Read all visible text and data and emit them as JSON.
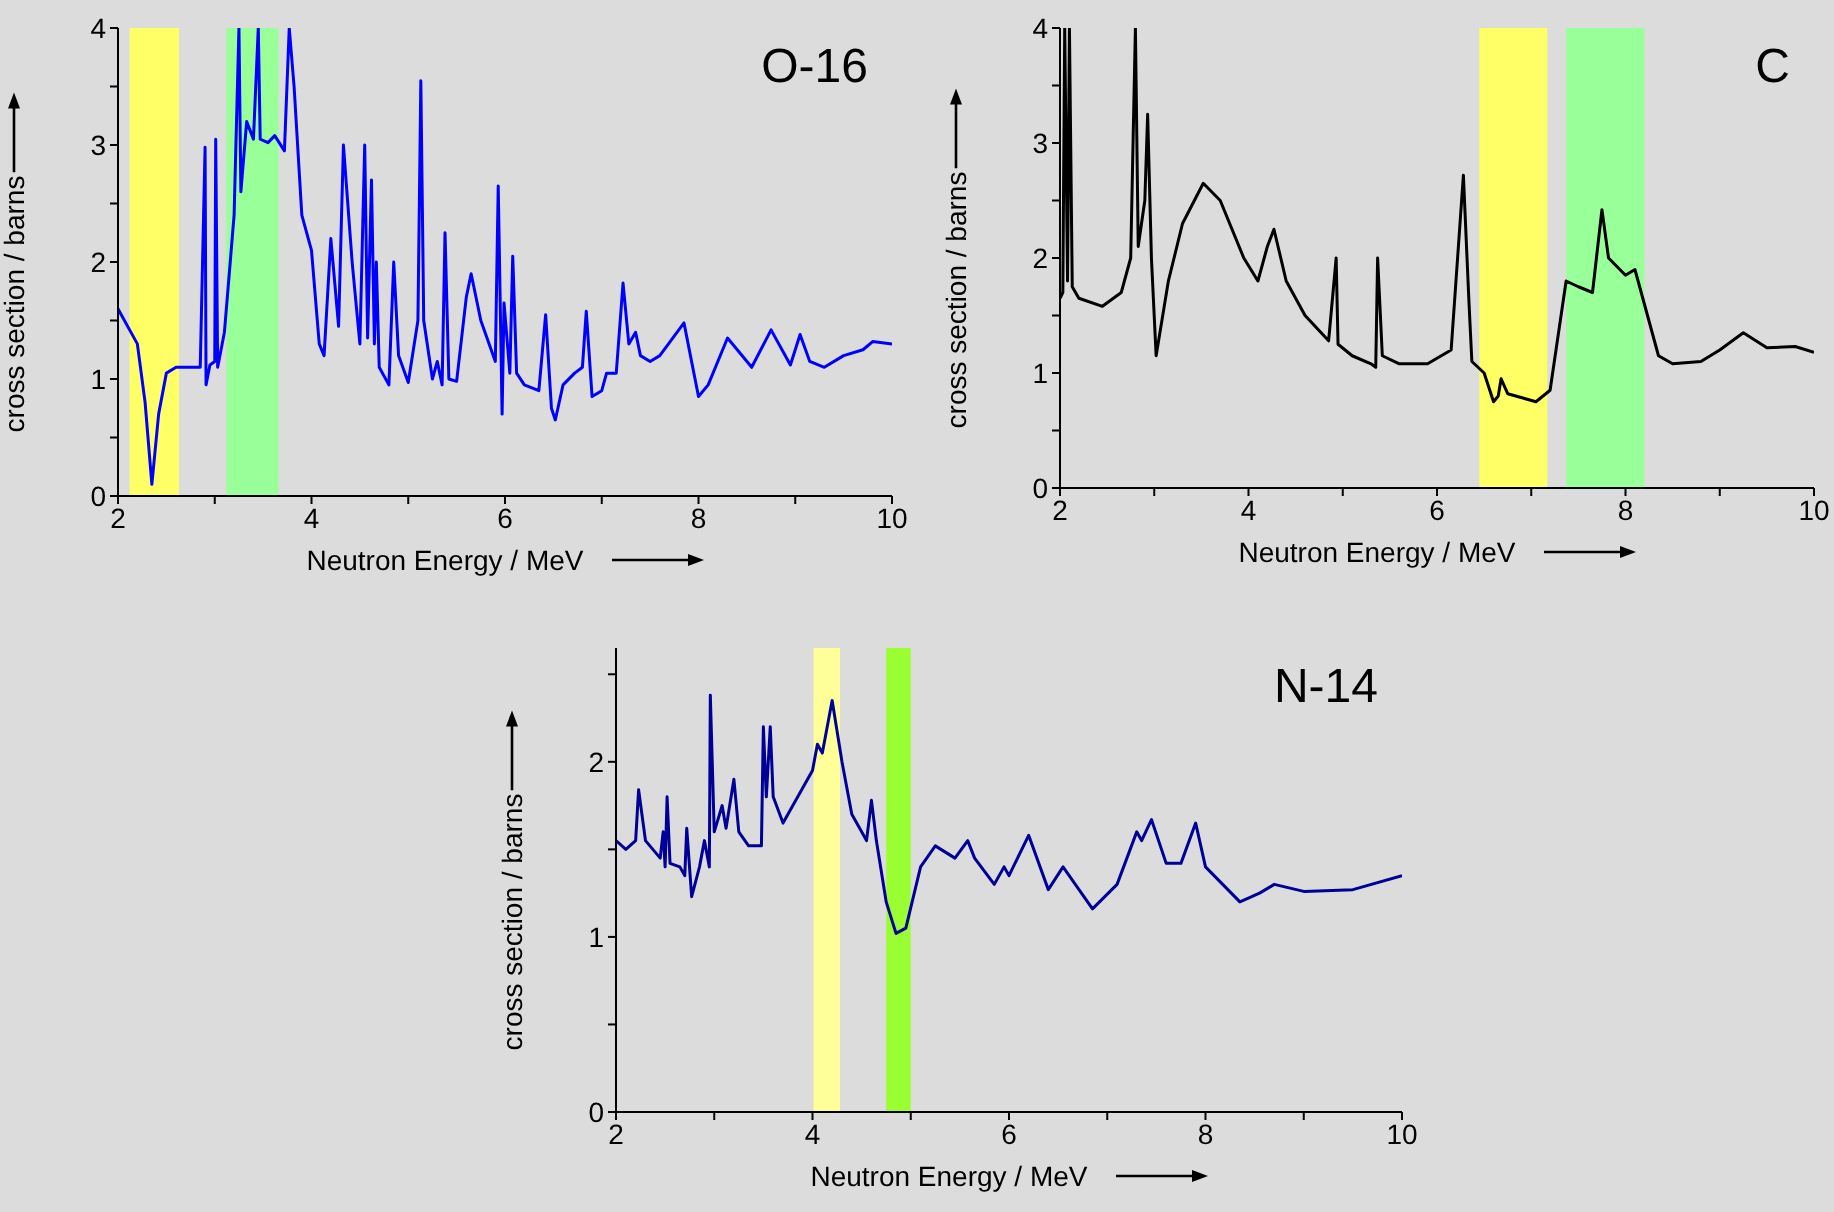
{
  "chart_data": [
    {
      "type": "line",
      "title": "O-16",
      "xlabel": "Neutron Energy / MeV",
      "ylabel": "cross section / barns",
      "marker": "none",
      "x": [
        2.0,
        2.1,
        2.2,
        2.28,
        2.35,
        2.42,
        2.5,
        2.6,
        2.85,
        2.9,
        2.91,
        2.95,
        3.0,
        3.01,
        3.03,
        3.1,
        3.2,
        3.25,
        3.27,
        3.33,
        3.4,
        3.45,
        3.47,
        3.55,
        3.62,
        3.72,
        3.77,
        3.82,
        3.9,
        4.0,
        4.08,
        4.13,
        4.2,
        4.28,
        4.33,
        4.42,
        4.5,
        4.55,
        4.58,
        4.62,
        4.65,
        4.67,
        4.7,
        4.8,
        4.85,
        4.9,
        5.0,
        5.1,
        5.13,
        5.16,
        5.25,
        5.3,
        5.35,
        5.38,
        5.42,
        5.5,
        5.6,
        5.65,
        5.75,
        5.9,
        5.93,
        5.97,
        5.99,
        6.05,
        6.08,
        6.12,
        6.2,
        6.35,
        6.42,
        6.48,
        6.52,
        6.6,
        6.72,
        6.8,
        6.84,
        6.9,
        7.0,
        7.05,
        7.15,
        7.22,
        7.28,
        7.35,
        7.4,
        7.5,
        7.6,
        7.85,
        8.0,
        8.1,
        8.3,
        8.55,
        8.75,
        8.95,
        9.05,
        9.15,
        9.3,
        9.5,
        9.7,
        9.8,
        10.0
      ],
      "series": [
        {
          "color": "#0000ff",
          "values": [
            1.6,
            1.45,
            1.3,
            0.8,
            0.1,
            0.7,
            1.05,
            1.1,
            1.1,
            2.98,
            0.95,
            1.12,
            1.15,
            3.05,
            1.1,
            1.4,
            2.4,
            4.0,
            2.6,
            3.2,
            3.05,
            4.0,
            3.05,
            3.02,
            3.08,
            2.95,
            4.0,
            3.5,
            2.4,
            2.1,
            1.3,
            1.2,
            2.2,
            1.45,
            3.0,
            2.0,
            1.3,
            3.0,
            1.35,
            2.7,
            1.3,
            2.0,
            1.1,
            0.95,
            2.0,
            1.2,
            0.97,
            1.5,
            3.55,
            1.5,
            1.0,
            1.15,
            0.95,
            2.25,
            1.0,
            0.98,
            1.7,
            1.9,
            1.5,
            1.15,
            2.65,
            0.7,
            1.65,
            1.05,
            2.05,
            1.05,
            0.95,
            0.9,
            1.55,
            0.75,
            0.65,
            0.95,
            1.05,
            1.1,
            1.58,
            0.85,
            0.9,
            1.05,
            1.05,
            1.82,
            1.3,
            1.4,
            1.2,
            1.15,
            1.2,
            1.48,
            0.85,
            0.95,
            1.35,
            1.1,
            1.42,
            1.12,
            1.38,
            1.15,
            1.1,
            1.2,
            1.25,
            1.32,
            1.3
          ]
        }
      ],
      "xlim": [
        2,
        10
      ],
      "ylim": [
        0,
        4
      ],
      "xticks": [
        2,
        {
          "value": 3,
          "label": null
        },
        4,
        {
          "value": 5,
          "label": null
        },
        6,
        {
          "value": 7,
          "label": null
        },
        8,
        {
          "value": 9,
          "label": null
        },
        10
      ],
      "yticks": [
        0,
        {
          "value": 0.5,
          "label": null
        },
        1,
        {
          "value": 1.5,
          "label": null
        },
        2,
        {
          "value": 2.5,
          "label": null
        },
        3,
        {
          "value": 3.5,
          "label": null
        },
        4
      ],
      "bands": [
        {
          "axis": "x",
          "from": 2.12,
          "to": 2.63,
          "color": "#ffff66"
        },
        {
          "axis": "x",
          "from": 3.12,
          "to": 3.66,
          "color": "#99ff99"
        }
      ]
    },
    {
      "type": "line",
      "title": "C",
      "xlabel": "Neutron Energy / MeV",
      "ylabel": "cross section / barns",
      "marker": "none",
      "x": [
        2.0,
        2.03,
        2.05,
        2.08,
        2.1,
        2.13,
        2.2,
        2.45,
        2.65,
        2.75,
        2.8,
        2.83,
        2.9,
        2.93,
        2.97,
        3.02,
        3.15,
        3.3,
        3.52,
        3.7,
        3.95,
        4.1,
        4.2,
        4.27,
        4.4,
        4.6,
        4.85,
        4.93,
        4.95,
        5.1,
        5.3,
        5.35,
        5.37,
        5.42,
        5.6,
        5.9,
        6.15,
        6.28,
        6.34,
        6.37,
        6.5,
        6.6,
        6.65,
        6.68,
        6.75,
        7.05,
        7.2,
        7.37,
        7.5,
        7.65,
        7.75,
        7.82,
        8.0,
        8.1,
        8.2,
        8.35,
        8.5,
        8.8,
        9.0,
        9.25,
        9.5,
        9.8,
        10.0
      ],
      "series": [
        {
          "color": "#000000",
          "values": [
            1.65,
            1.7,
            4.0,
            1.8,
            4.0,
            1.75,
            1.65,
            1.58,
            1.7,
            2.0,
            4.0,
            2.1,
            2.5,
            3.25,
            2.0,
            1.15,
            1.8,
            2.3,
            2.65,
            2.5,
            2.0,
            1.8,
            2.1,
            2.25,
            1.8,
            1.5,
            1.28,
            2.0,
            1.25,
            1.15,
            1.08,
            1.05,
            2.0,
            1.15,
            1.08,
            1.08,
            1.2,
            2.72,
            1.6,
            1.1,
            1.0,
            0.75,
            0.8,
            0.95,
            0.82,
            0.75,
            0.85,
            1.8,
            1.75,
            1.7,
            2.42,
            2.0,
            1.85,
            1.9,
            1.6,
            1.15,
            1.08,
            1.1,
            1.2,
            1.35,
            1.22,
            1.23,
            1.18
          ]
        }
      ],
      "xlim": [
        2,
        10
      ],
      "ylim": [
        0,
        4
      ],
      "xticks": [
        2,
        {
          "value": 3,
          "label": null
        },
        4,
        {
          "value": 5,
          "label": null
        },
        6,
        {
          "value": 7,
          "label": null
        },
        8,
        {
          "value": 9,
          "label": null
        },
        10
      ],
      "yticks": [
        0,
        {
          "value": 0.5,
          "label": null
        },
        1,
        {
          "value": 1.5,
          "label": null
        },
        2,
        {
          "value": 2.5,
          "label": null
        },
        3,
        {
          "value": 3.5,
          "label": null
        },
        4
      ],
      "bands": [
        {
          "axis": "x",
          "from": 6.45,
          "to": 7.17,
          "color": "#ffff66"
        },
        {
          "axis": "x",
          "from": 7.37,
          "to": 8.2,
          "color": "#99ff99"
        }
      ]
    },
    {
      "type": "line",
      "title": "N-14",
      "xlabel": "Neutron Energy / MeV",
      "ylabel": "cross section / barns",
      "marker": "none",
      "x": [
        2.0,
        2.1,
        2.2,
        2.23,
        2.3,
        2.45,
        2.48,
        2.5,
        2.52,
        2.55,
        2.65,
        2.7,
        2.72,
        2.77,
        2.85,
        2.9,
        2.95,
        2.96,
        3.0,
        3.08,
        3.12,
        3.2,
        3.25,
        3.35,
        3.48,
        3.5,
        3.53,
        3.57,
        3.6,
        3.7,
        3.85,
        4.0,
        4.05,
        4.1,
        4.2,
        4.3,
        4.4,
        4.5,
        4.55,
        4.6,
        4.65,
        4.75,
        4.85,
        4.95,
        5.1,
        5.25,
        5.45,
        5.58,
        5.65,
        5.85,
        5.95,
        6.0,
        6.2,
        6.4,
        6.55,
        6.85,
        7.1,
        7.3,
        7.35,
        7.45,
        7.6,
        7.75,
        7.9,
        8.0,
        8.35,
        8.55,
        8.7,
        9.0,
        9.5,
        10.0
      ],
      "series": [
        {
          "color": "#000099",
          "values": [
            1.55,
            1.5,
            1.55,
            1.84,
            1.55,
            1.45,
            1.6,
            1.4,
            1.8,
            1.42,
            1.4,
            1.35,
            1.62,
            1.23,
            1.4,
            1.55,
            1.4,
            2.38,
            1.6,
            1.75,
            1.62,
            1.9,
            1.6,
            1.52,
            1.52,
            2.2,
            1.8,
            2.2,
            1.8,
            1.65,
            1.8,
            1.95,
            2.1,
            2.05,
            2.35,
            2.0,
            1.7,
            1.6,
            1.55,
            1.78,
            1.55,
            1.2,
            1.02,
            1.05,
            1.4,
            1.52,
            1.45,
            1.55,
            1.45,
            1.3,
            1.4,
            1.35,
            1.58,
            1.27,
            1.4,
            1.16,
            1.3,
            1.6,
            1.55,
            1.67,
            1.42,
            1.42,
            1.65,
            1.4,
            1.2,
            1.25,
            1.3,
            1.26,
            1.27,
            1.35
          ]
        }
      ],
      "xlim": [
        2,
        10
      ],
      "ylim": [
        0,
        2.65
      ],
      "xticks": [
        2,
        {
          "value": 3,
          "label": null
        },
        4,
        {
          "value": 5,
          "label": null
        },
        6,
        {
          "value": 7,
          "label": null
        },
        8,
        {
          "value": 9,
          "label": null
        },
        10
      ],
      "yticks": [
        0,
        {
          "value": 0.5,
          "label": null
        },
        1,
        {
          "value": 1.5,
          "label": null
        },
        2,
        {
          "value": 2.5,
          "label": null
        }
      ],
      "bands": [
        {
          "axis": "x",
          "from": 4.01,
          "to": 4.28,
          "color": "#ffff99"
        },
        {
          "axis": "x",
          "from": 4.75,
          "to": 5.0,
          "color": "#99ff33"
        }
      ]
    }
  ]
}
